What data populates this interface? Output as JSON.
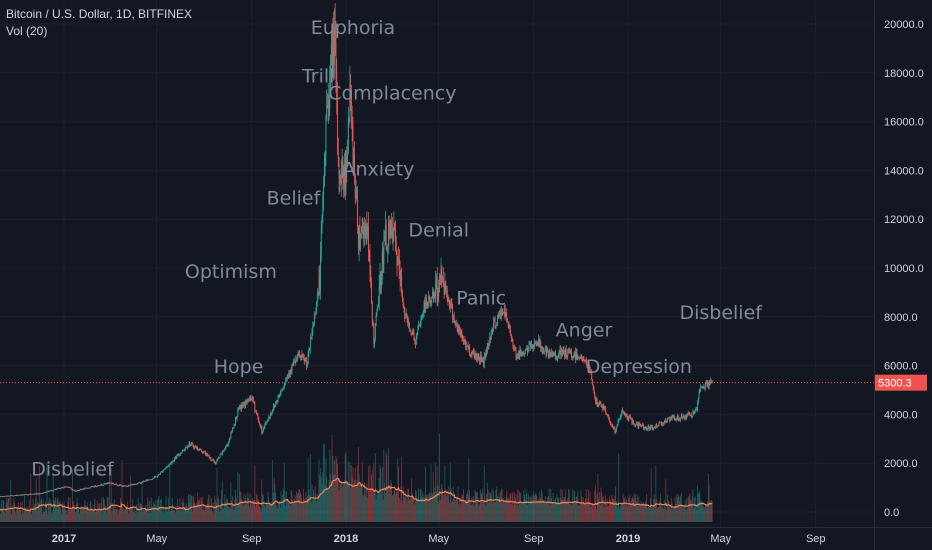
{
  "legend": {
    "title": "Bitcoin / U.S. Dollar, 1D, BITFINEX",
    "volume": "Vol (20)"
  },
  "colors": {
    "background": "#131722",
    "up": "#26a69a",
    "down": "#ef5350",
    "volume_ma": "#f0845a",
    "price_line": "#ef5350",
    "phase_text": "#7f8a9a",
    "axis_text": "#d1d4dc"
  },
  "chart_data": {
    "type": "line",
    "title": "Bitcoin / U.S. Dollar, 1D, BITFINEX",
    "ylim": [
      -600,
      20700
    ],
    "y_ticks": [
      "20000.0",
      "18000.0",
      "16000.0",
      "14000.0",
      "12000.0",
      "10000.0",
      "8000.0",
      "6000.0",
      "4000.0",
      "2000.0",
      "0.0"
    ],
    "x_ticks": [
      {
        "date": "2017-01-01",
        "label": "2017",
        "bold": true
      },
      {
        "date": "2017-05-01",
        "label": "May",
        "bold": false
      },
      {
        "date": "2017-09-01",
        "label": "Sep",
        "bold": false
      },
      {
        "date": "2018-01-01",
        "label": "2018",
        "bold": true
      },
      {
        "date": "2018-05-01",
        "label": "May",
        "bold": false
      },
      {
        "date": "2018-09-01",
        "label": "Sep",
        "bold": false
      },
      {
        "date": "2019-01-01",
        "label": "2019",
        "bold": true
      },
      {
        "date": "2019-05-01",
        "label": "May",
        "bold": false
      },
      {
        "date": "2019-09-01",
        "label": "Sep",
        "bold": false
      }
    ],
    "series": [
      {
        "values_x": [
          "2016-10-01",
          "2016-12-01",
          "2017-01-05",
          "2017-01-15",
          "2017-03-01",
          "2017-03-20",
          "2017-04-10",
          "2017-05-01",
          "2017-05-25",
          "2017-06-12",
          "2017-07-01",
          "2017-07-16",
          "2017-08-01",
          "2017-08-15",
          "2017-09-01",
          "2017-09-14",
          "2017-10-01",
          "2017-10-20",
          "2017-11-01",
          "2017-11-12",
          "2017-11-28",
          "2017-12-07",
          "2017-12-17",
          "2017-12-22",
          "2017-12-31",
          "2018-01-06",
          "2018-01-17",
          "2018-01-28",
          "2018-02-06",
          "2018-02-20",
          "2018-03-04",
          "2018-03-18",
          "2018-04-01",
          "2018-04-12",
          "2018-04-25",
          "2018-05-05",
          "2018-05-25",
          "2018-06-10",
          "2018-06-28",
          "2018-07-10",
          "2018-07-24",
          "2018-08-10",
          "2018-08-25",
          "2018-09-05",
          "2018-09-20",
          "2018-10-10",
          "2018-11-01",
          "2018-11-14",
          "2018-11-20",
          "2018-11-30",
          "2018-12-15",
          "2018-12-24",
          "2019-01-10",
          "2019-01-31",
          "2019-02-15",
          "2019-02-25",
          "2019-03-15",
          "2019-03-31",
          "2019-04-03",
          "2019-04-10",
          "2019-04-20"
        ],
        "values": [
          610,
          760,
          1050,
          860,
          1200,
          1050,
          1200,
          1450,
          2200,
          2800,
          2450,
          2000,
          2800,
          4200,
          4700,
          3300,
          4400,
          5800,
          6400,
          6100,
          9500,
          16500,
          19600,
          14000,
          13800,
          17000,
          11400,
          11800,
          6950,
          11200,
          11400,
          8100,
          7000,
          8400,
          8900,
          9700,
          7500,
          6600,
          6200,
          7600,
          8300,
          6400,
          6700,
          7000,
          6400,
          6500,
          6400,
          5700,
          4500,
          4300,
          3300,
          4100,
          3600,
          3400,
          3700,
          3800,
          3900,
          4100,
          4950,
          5200,
          5300
        ]
      }
    ],
    "current_price": "5300.3",
    "volume_series_name": "Vol (20)",
    "phases": [
      {
        "label": "Disbelief",
        "date": "2017-01-12",
        "price": 1500
      },
      {
        "label": "Hope",
        "date": "2017-08-15",
        "price": 5700
      },
      {
        "label": "Optimism",
        "date": "2017-08-05",
        "price": 9600
      },
      {
        "label": "Belief",
        "date": "2017-10-25",
        "price": 12600
      },
      {
        "label": "Trill",
        "date": "2017-11-26",
        "price": 17600
      },
      {
        "label": "Euphoria",
        "date": "2018-01-10",
        "price": 19600
      },
      {
        "label": "Complacency",
        "date": "2018-03-02",
        "price": 16900
      },
      {
        "label": "Anxiety",
        "date": "2018-02-12",
        "price": 13800
      },
      {
        "label": "Denial",
        "date": "2018-05-01",
        "price": 11300
      },
      {
        "label": "Panic",
        "date": "2018-06-25",
        "price": 8500
      },
      {
        "label": "Anger",
        "date": "2018-11-05",
        "price": 7200
      },
      {
        "label": "Depression",
        "date": "2019-01-15",
        "price": 5700
      },
      {
        "label": "Disbelief",
        "date": "2019-05-01",
        "price": 7900
      }
    ]
  }
}
